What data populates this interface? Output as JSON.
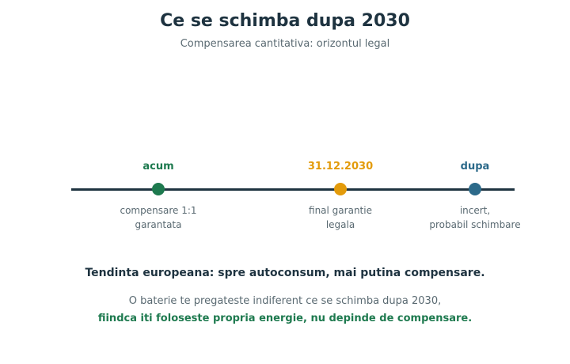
{
  "header": {
    "title": "Ce se schimba dupa 2030",
    "subtitle": "Compensarea cantitativa: orizontul legal"
  },
  "timeline": {
    "milestones": [
      {
        "label": "acum",
        "description_lines": [
          "compensare 1:1",
          "garantata"
        ],
        "color": "#1e7a4f"
      },
      {
        "label": "31.12.2030",
        "description_lines": [
          "final garantie",
          "legala"
        ],
        "color": "#e39b0b"
      },
      {
        "label": "dupa",
        "description_lines": [
          "incert,",
          "probabil schimbare"
        ],
        "color": "#2c6a8a"
      }
    ],
    "line_color": "#1e3340"
  },
  "footer": {
    "statement": "Tendinta europeana: spre autoconsum, mai putina compensare.",
    "note_line_1": "O baterie te pregateste indiferent ce se schimba dupa 2030,",
    "note_line_2": "fiindca iti foloseste propria energie, nu depinde de compensare."
  }
}
